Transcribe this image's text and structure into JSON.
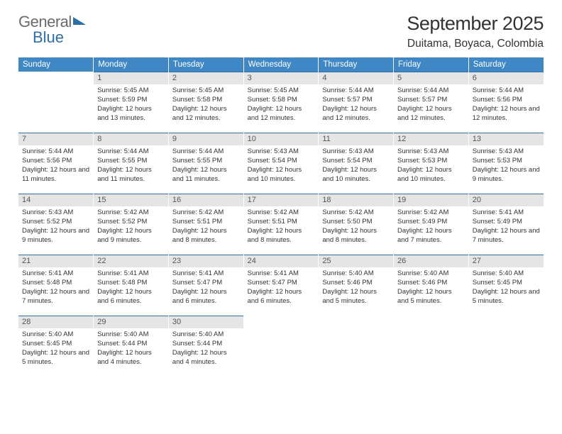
{
  "brand": {
    "part1": "General",
    "part2": "Blue"
  },
  "title": "September 2025",
  "location": "Duitama, Boyaca, Colombia",
  "colors": {
    "header_bg": "#3f88c5",
    "header_text": "#ffffff",
    "daynum_bg": "#e5e5e5",
    "daynum_text": "#555555",
    "rule": "#2f6fa8",
    "body_text": "#333333",
    "logo_gray": "#6b6b6b",
    "logo_blue": "#2f6fa8"
  },
  "weekdays": [
    "Sunday",
    "Monday",
    "Tuesday",
    "Wednesday",
    "Thursday",
    "Friday",
    "Saturday"
  ],
  "weeks": [
    [
      null,
      {
        "n": "1",
        "sr": "5:45 AM",
        "ss": "5:59 PM",
        "dl": "12 hours and 13 minutes."
      },
      {
        "n": "2",
        "sr": "5:45 AM",
        "ss": "5:58 PM",
        "dl": "12 hours and 12 minutes."
      },
      {
        "n": "3",
        "sr": "5:45 AM",
        "ss": "5:58 PM",
        "dl": "12 hours and 12 minutes."
      },
      {
        "n": "4",
        "sr": "5:44 AM",
        "ss": "5:57 PM",
        "dl": "12 hours and 12 minutes."
      },
      {
        "n": "5",
        "sr": "5:44 AM",
        "ss": "5:57 PM",
        "dl": "12 hours and 12 minutes."
      },
      {
        "n": "6",
        "sr": "5:44 AM",
        "ss": "5:56 PM",
        "dl": "12 hours and 12 minutes."
      }
    ],
    [
      {
        "n": "7",
        "sr": "5:44 AM",
        "ss": "5:56 PM",
        "dl": "12 hours and 11 minutes."
      },
      {
        "n": "8",
        "sr": "5:44 AM",
        "ss": "5:55 PM",
        "dl": "12 hours and 11 minutes."
      },
      {
        "n": "9",
        "sr": "5:44 AM",
        "ss": "5:55 PM",
        "dl": "12 hours and 11 minutes."
      },
      {
        "n": "10",
        "sr": "5:43 AM",
        "ss": "5:54 PM",
        "dl": "12 hours and 10 minutes."
      },
      {
        "n": "11",
        "sr": "5:43 AM",
        "ss": "5:54 PM",
        "dl": "12 hours and 10 minutes."
      },
      {
        "n": "12",
        "sr": "5:43 AM",
        "ss": "5:53 PM",
        "dl": "12 hours and 10 minutes."
      },
      {
        "n": "13",
        "sr": "5:43 AM",
        "ss": "5:53 PM",
        "dl": "12 hours and 9 minutes."
      }
    ],
    [
      {
        "n": "14",
        "sr": "5:43 AM",
        "ss": "5:52 PM",
        "dl": "12 hours and 9 minutes."
      },
      {
        "n": "15",
        "sr": "5:42 AM",
        "ss": "5:52 PM",
        "dl": "12 hours and 9 minutes."
      },
      {
        "n": "16",
        "sr": "5:42 AM",
        "ss": "5:51 PM",
        "dl": "12 hours and 8 minutes."
      },
      {
        "n": "17",
        "sr": "5:42 AM",
        "ss": "5:51 PM",
        "dl": "12 hours and 8 minutes."
      },
      {
        "n": "18",
        "sr": "5:42 AM",
        "ss": "5:50 PM",
        "dl": "12 hours and 8 minutes."
      },
      {
        "n": "19",
        "sr": "5:42 AM",
        "ss": "5:49 PM",
        "dl": "12 hours and 7 minutes."
      },
      {
        "n": "20",
        "sr": "5:41 AM",
        "ss": "5:49 PM",
        "dl": "12 hours and 7 minutes."
      }
    ],
    [
      {
        "n": "21",
        "sr": "5:41 AM",
        "ss": "5:48 PM",
        "dl": "12 hours and 7 minutes."
      },
      {
        "n": "22",
        "sr": "5:41 AM",
        "ss": "5:48 PM",
        "dl": "12 hours and 6 minutes."
      },
      {
        "n": "23",
        "sr": "5:41 AM",
        "ss": "5:47 PM",
        "dl": "12 hours and 6 minutes."
      },
      {
        "n": "24",
        "sr": "5:41 AM",
        "ss": "5:47 PM",
        "dl": "12 hours and 6 minutes."
      },
      {
        "n": "25",
        "sr": "5:40 AM",
        "ss": "5:46 PM",
        "dl": "12 hours and 5 minutes."
      },
      {
        "n": "26",
        "sr": "5:40 AM",
        "ss": "5:46 PM",
        "dl": "12 hours and 5 minutes."
      },
      {
        "n": "27",
        "sr": "5:40 AM",
        "ss": "5:45 PM",
        "dl": "12 hours and 5 minutes."
      }
    ],
    [
      {
        "n": "28",
        "sr": "5:40 AM",
        "ss": "5:45 PM",
        "dl": "12 hours and 5 minutes."
      },
      {
        "n": "29",
        "sr": "5:40 AM",
        "ss": "5:44 PM",
        "dl": "12 hours and 4 minutes."
      },
      {
        "n": "30",
        "sr": "5:40 AM",
        "ss": "5:44 PM",
        "dl": "12 hours and 4 minutes."
      },
      null,
      null,
      null,
      null
    ]
  ],
  "labels": {
    "sunrise": "Sunrise:",
    "sunset": "Sunset:",
    "daylight": "Daylight:"
  }
}
